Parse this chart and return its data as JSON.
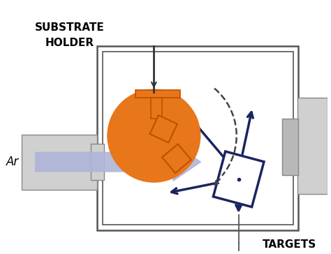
{
  "bg_color": "#ffffff",
  "orange": "#E8761A",
  "dark_blue": "#1a2560",
  "gray_light": "#d0d0d0",
  "gray_medium": "#b8b8b8",
  "arrow_blue": "#b0b5d8",
  "line_color": "#555555",
  "title_substrate": "SUBSTRATE\nHOLDER",
  "title_targets": "TARGETS",
  "title_ar": "Ar",
  "figsize": [
    4.74,
    3.64
  ],
  "dpi": 100
}
